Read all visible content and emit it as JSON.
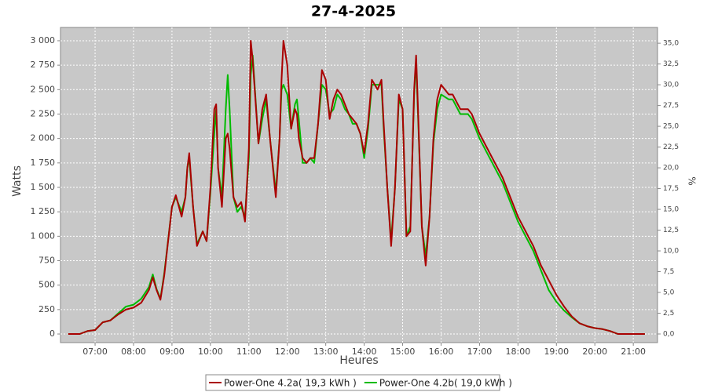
{
  "chart_data": {
    "type": "line",
    "title": "27-4-2025",
    "x_label": "Heures",
    "y_label": "Watts",
    "y2_label": "%",
    "x": [
      6.3,
      6.6,
      6.8,
      7.0,
      7.2,
      7.4,
      7.6,
      7.8,
      8.0,
      8.2,
      8.4,
      8.5,
      8.6,
      8.7,
      8.8,
      9.0,
      9.1,
      9.25,
      9.35,
      9.4,
      9.45,
      9.55,
      9.65,
      9.8,
      9.9,
      10.0,
      10.1,
      10.15,
      10.2,
      10.3,
      10.4,
      10.45,
      10.5,
      10.6,
      10.7,
      10.8,
      10.9,
      11.0,
      11.05,
      11.1,
      11.25,
      11.35,
      11.45,
      11.55,
      11.7,
      11.8,
      11.85,
      11.9,
      12.0,
      12.1,
      12.2,
      12.25,
      12.3,
      12.4,
      12.5,
      12.6,
      12.7,
      12.8,
      12.9,
      13.0,
      13.1,
      13.2,
      13.3,
      13.4,
      13.5,
      13.6,
      13.7,
      13.8,
      13.9,
      14.0,
      14.1,
      14.2,
      14.35,
      14.45,
      14.5,
      14.6,
      14.7,
      14.8,
      14.9,
      15.0,
      15.1,
      15.2,
      15.3,
      15.35,
      15.4,
      15.5,
      15.6,
      15.7,
      15.8,
      15.9,
      16.0,
      16.2,
      16.3,
      16.5,
      16.7,
      16.8,
      17.0,
      17.2,
      17.4,
      17.6,
      17.8,
      18.0,
      18.2,
      18.4,
      18.6,
      18.8,
      19.0,
      19.2,
      19.4,
      19.6,
      19.8,
      20.0,
      20.2,
      20.4,
      20.6,
      21.0,
      21.3
    ],
    "series": [
      {
        "name": "Power-One 4.2a( 19,3 kWh )",
        "color": "#aa0000",
        "values": [
          0,
          0,
          30,
          40,
          120,
          140,
          200,
          250,
          270,
          320,
          450,
          580,
          450,
          350,
          600,
          1300,
          1420,
          1200,
          1400,
          1700,
          1850,
          1300,
          900,
          1050,
          950,
          1500,
          2300,
          2350,
          1700,
          1300,
          2000,
          2050,
          1900,
          1400,
          1300,
          1350,
          1150,
          1900,
          3000,
          2800,
          1950,
          2300,
          2450,
          2000,
          1400,
          2000,
          2600,
          3000,
          2750,
          2100,
          2300,
          2250,
          2000,
          1800,
          1750,
          1800,
          1800,
          2150,
          2700,
          2600,
          2200,
          2400,
          2500,
          2450,
          2350,
          2250,
          2200,
          2150,
          2050,
          1850,
          2150,
          2600,
          2500,
          2600,
          2200,
          1500,
          900,
          1500,
          2450,
          2300,
          1000,
          1050,
          2500,
          2850,
          2300,
          1100,
          700,
          1200,
          2000,
          2400,
          2550,
          2450,
          2450,
          2300,
          2300,
          2250,
          2050,
          1900,
          1750,
          1600,
          1400,
          1200,
          1050,
          900,
          700,
          550,
          400,
          280,
          180,
          110,
          80,
          60,
          50,
          30,
          0,
          0,
          0
        ]
      },
      {
        "name": "Power-One 4.2b( 19,0 kWh )",
        "color": "#00bb00",
        "values": [
          0,
          0,
          30,
          40,
          120,
          140,
          210,
          280,
          300,
          360,
          480,
          610,
          460,
          360,
          620,
          1300,
          1400,
          1250,
          1400,
          1700,
          1800,
          1300,
          920,
          1050,
          950,
          1450,
          2050,
          2300,
          1700,
          1400,
          2300,
          2650,
          2300,
          1400,
          1250,
          1300,
          1200,
          1800,
          2650,
          2850,
          1950,
          2200,
          2400,
          2000,
          1450,
          2000,
          2500,
          2550,
          2450,
          2100,
          2350,
          2400,
          2200,
          1750,
          1750,
          1800,
          1750,
          2150,
          2550,
          2500,
          2250,
          2300,
          2450,
          2400,
          2300,
          2250,
          2150,
          2150,
          2050,
          1800,
          2100,
          2550,
          2550,
          2550,
          2150,
          1500,
          950,
          1500,
          2400,
          2300,
          1000,
          1100,
          2450,
          2800,
          2250,
          1100,
          800,
          1200,
          1950,
          2300,
          2450,
          2400,
          2400,
          2250,
          2250,
          2200,
          2000,
          1850,
          1700,
          1550,
          1350,
          1150,
          1000,
          850,
          650,
          450,
          330,
          240,
          170,
          110,
          80,
          60,
          50,
          30,
          0,
          0,
          0
        ]
      }
    ],
    "xlim": [
      6.1,
      21.63
    ],
    "xticks": [
      {
        "value": 7,
        "label": "07:00"
      },
      {
        "value": 8,
        "label": "08:00"
      },
      {
        "value": 9,
        "label": "09:00"
      },
      {
        "value": 10,
        "label": "10:00"
      },
      {
        "value": 11,
        "label": "11:00"
      },
      {
        "value": 12,
        "label": "12:00"
      },
      {
        "value": 13,
        "label": "13:00"
      },
      {
        "value": 14,
        "label": "14:00"
      },
      {
        "value": 15,
        "label": "15:00"
      },
      {
        "value": 16,
        "label": "16:00"
      },
      {
        "value": 17,
        "label": "17:00"
      },
      {
        "value": 18,
        "label": "18:00"
      },
      {
        "value": 19,
        "label": "19:00"
      },
      {
        "value": 20,
        "label": "20:00"
      },
      {
        "value": 21,
        "label": "21:00"
      }
    ],
    "ylim": [
      -88,
      3136
    ],
    "yticks": [
      0,
      250,
      500,
      750,
      {
        "value": 1000,
        "label": "1 000"
      },
      {
        "value": 1250,
        "label": "1 250"
      },
      {
        "value": 1500,
        "label": "1 500"
      },
      {
        "value": 1750,
        "label": "1 750"
      },
      {
        "value": 2000,
        "label": "2 000"
      },
      {
        "value": 2250,
        "label": "2 250"
      },
      {
        "value": 2500,
        "label": "2 500"
      },
      {
        "value": 2750,
        "label": "2 750"
      },
      {
        "value": 3000,
        "label": "3 000"
      }
    ],
    "y2lim": [
      -1.04,
      36.9
    ],
    "y2ticks": [
      {
        "value": 0,
        "label": "0,0"
      },
      {
        "value": 2.5,
        "label": "2,5"
      },
      {
        "value": 5,
        "label": "5,0"
      },
      {
        "value": 7.5,
        "label": "7,5"
      },
      {
        "value": 10,
        "label": "10,0"
      },
      {
        "value": 12.5,
        "label": "12,5"
      },
      {
        "value": 15,
        "label": "15,0"
      },
      {
        "value": 17.5,
        "label": "17,5"
      },
      {
        "value": 20,
        "label": "20,0"
      },
      {
        "value": 22.5,
        "label": "22,5"
      },
      {
        "value": 25,
        "label": "25,0"
      },
      {
        "value": 27.5,
        "label": "27,5"
      },
      {
        "value": 30,
        "label": "30,0"
      },
      {
        "value": 32.5,
        "label": "32,5"
      },
      {
        "value": 35,
        "label": "35,0"
      }
    ],
    "grid": true
  }
}
